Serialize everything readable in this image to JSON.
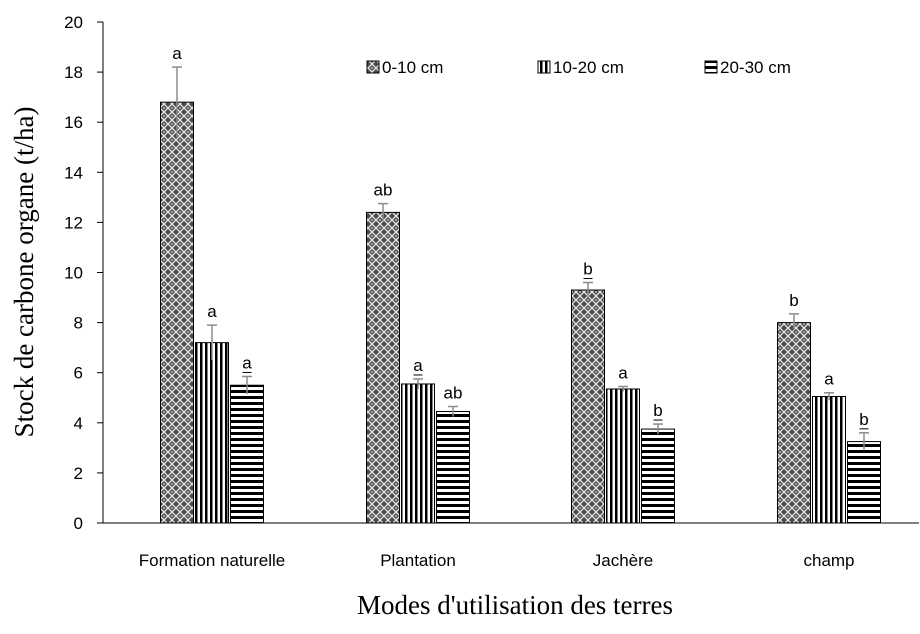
{
  "chart_data": {
    "type": "bar",
    "title": "",
    "xlabel": "Modes d'utilisation des terres",
    "ylabel": "Stock de carbone organe (t/ha)",
    "ylim": [
      0,
      20
    ],
    "ytick_step": 2,
    "yticks": [
      "0",
      "2",
      "4",
      "6",
      "8",
      "10",
      "12",
      "14",
      "16",
      "18",
      "20"
    ],
    "grid": false,
    "legend_position": "top-right",
    "categories": [
      "Formation naturelle",
      "Plantation",
      "Jachère",
      "champ"
    ],
    "series": [
      {
        "name": "0-10 cm",
        "pattern": "crosshatch",
        "values": [
          16.8,
          12.4,
          9.3,
          8.0
        ],
        "errors": [
          1.4,
          0.35,
          0.3,
          0.35
        ],
        "labels": [
          "a",
          "ab",
          "b",
          "b"
        ],
        "label_underlined": [
          false,
          false,
          true,
          false
        ]
      },
      {
        "name": "10-20 cm",
        "pattern": "vertical",
        "values": [
          7.2,
          5.55,
          5.35,
          5.05
        ],
        "errors": [
          0.7,
          0.2,
          0.1,
          0.15
        ],
        "labels": [
          "a",
          "a",
          "a",
          "a"
        ],
        "label_underlined": [
          false,
          true,
          false,
          false
        ]
      },
      {
        "name": "20-30 cm",
        "pattern": "horizontal",
        "values": [
          5.5,
          4.45,
          3.75,
          3.25
        ],
        "errors": [
          0.35,
          0.2,
          0.2,
          0.35
        ],
        "labels": [
          "a",
          "ab",
          "b",
          "b"
        ],
        "label_underlined": [
          true,
          false,
          true,
          true
        ]
      }
    ]
  }
}
